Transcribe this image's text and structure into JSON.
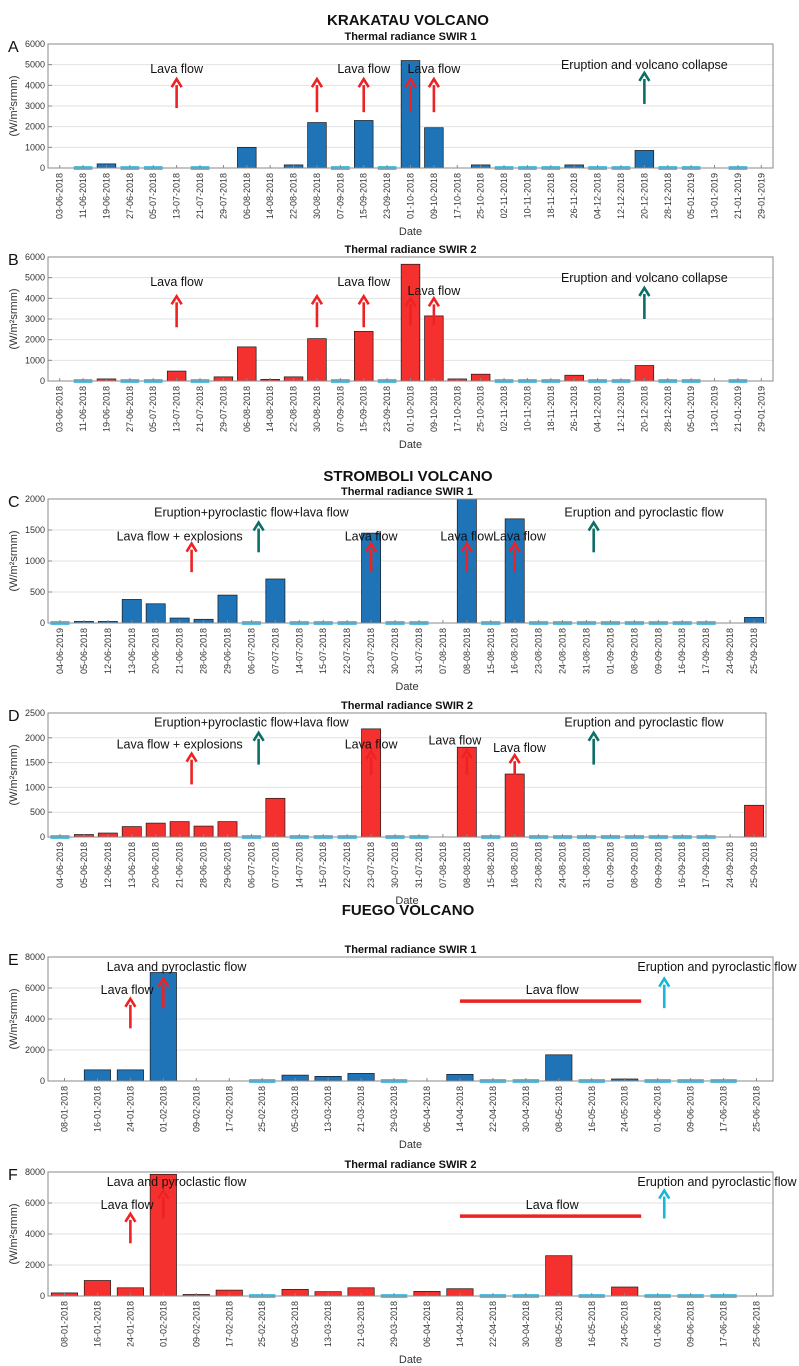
{
  "sections": [
    {
      "key": "krakatau",
      "title": "KRAKATAU VOLCANO"
    },
    {
      "key": "stromboli",
      "title": "STROMBOLI VOLCANO"
    },
    {
      "key": "fuego",
      "title": "FUEGO VOLCANO"
    }
  ],
  "colors": {
    "blue": "#1f74b8",
    "red": "#f5312f",
    "cyan": "#53c1e3",
    "arrow_red": "#ee2222",
    "arrow_teal": "#0b6e67",
    "arrow_cyan": "#1ab6d6",
    "grid": "#e2e2e2",
    "axis": "#888888"
  },
  "chart_data": [
    {
      "id": "A",
      "section": "krakatau",
      "type": "bar",
      "title": "Thermal radiance SWIR 1",
      "xlabel": "Date",
      "ylabel": "(W/m²srmm)",
      "ylim": [
        0,
        6000
      ],
      "yticks": [
        0,
        1000,
        2000,
        3000,
        4000,
        5000,
        6000
      ],
      "bar_color": "blue",
      "categories": [
        "03-06-2018",
        "11-06-2018",
        "19-06-2018",
        "27-06-2018",
        "05-07-2018",
        "13-07-2018",
        "21-07-2018",
        "29-07-2018",
        "06-08-2018",
        "14-08-2018",
        "22-08-2018",
        "30-08-2018",
        "07-09-2018",
        "15-09-2018",
        "23-09-2018",
        "01-10-2018",
        "09-10-2018",
        "17-10-2018",
        "25-10-2018",
        "02-11-2018",
        "10-11-2018",
        "18-11-2018",
        "26-11-2018",
        "04-12-2018",
        "12-12-2018",
        "20-12-2018",
        "28-12-2018",
        "05-01-2019",
        "13-01-2019",
        "21-01-2019",
        "29-01-2019"
      ],
      "values": [
        0,
        -1,
        200,
        -1,
        -1,
        0,
        -1,
        0,
        1000,
        0,
        150,
        2200,
        -1,
        2300,
        -1,
        5200,
        1950,
        0,
        150,
        -1,
        -1,
        -1,
        150,
        -1,
        -1,
        850,
        -1,
        -1,
        0,
        -1,
        0
      ],
      "annotations": [
        {
          "text": "Lava flow",
          "label_category": 5,
          "label_value": 4600
        },
        {
          "text": "Lava flow",
          "label_category": 13,
          "label_value": 4600
        },
        {
          "text": "Lava flow",
          "label_category": 16,
          "label_value": 4600
        },
        {
          "text": "Eruption and volcano collapse",
          "label_category": 25,
          "label_value": 4800
        }
      ],
      "arrows": [
        {
          "category": 5,
          "from": 2900,
          "to": 4300,
          "color": "arrow_red"
        },
        {
          "category": 11,
          "from": 2700,
          "to": 4300,
          "color": "arrow_red"
        },
        {
          "category": 13,
          "from": 2700,
          "to": 4300,
          "color": "arrow_red"
        },
        {
          "category": 15,
          "from": 2700,
          "to": 4300,
          "color": "arrow_red"
        },
        {
          "category": 16,
          "from": 2700,
          "to": 4300,
          "color": "arrow_red"
        },
        {
          "category": 25,
          "from": 3100,
          "to": 4600,
          "color": "arrow_teal"
        }
      ]
    },
    {
      "id": "B",
      "section": "krakatau",
      "type": "bar",
      "title": "Thermal radiance SWIR 2",
      "xlabel": "Date",
      "ylabel": "(W/m²srmm)",
      "ylim": [
        0,
        6000
      ],
      "yticks": [
        0,
        1000,
        2000,
        3000,
        4000,
        5000,
        6000
      ],
      "bar_color": "red",
      "categories": [
        "03-06-2018",
        "11-06-2018",
        "19-06-2018",
        "27-06-2018",
        "05-07-2018",
        "13-07-2018",
        "21-07-2018",
        "29-07-2018",
        "06-08-2018",
        "14-08-2018",
        "22-08-2018",
        "30-08-2018",
        "07-09-2018",
        "15-09-2018",
        "23-09-2018",
        "01-10-2018",
        "09-10-2018",
        "17-10-2018",
        "25-10-2018",
        "02-11-2018",
        "10-11-2018",
        "18-11-2018",
        "26-11-2018",
        "04-12-2018",
        "12-12-2018",
        "20-12-2018",
        "28-12-2018",
        "05-01-2019",
        "13-01-2019",
        "21-01-2019",
        "29-01-2019"
      ],
      "values": [
        0,
        -1,
        100,
        -1,
        -1,
        480,
        -1,
        200,
        1650,
        80,
        200,
        2050,
        -1,
        2400,
        -1,
        5650,
        3150,
        100,
        330,
        -1,
        -1,
        -1,
        280,
        -1,
        -1,
        750,
        -1,
        -1,
        0,
        -1,
        0
      ],
      "annotations": [
        {
          "text": "Lava flow",
          "label_category": 5,
          "label_value": 4600
        },
        {
          "text": "Lava flow",
          "label_category": 13,
          "label_value": 4600
        },
        {
          "text": "Lava flow",
          "label_category": 16,
          "label_value": 4150
        },
        {
          "text": "Eruption and volcano collapse",
          "label_category": 25,
          "label_value": 4800
        }
      ],
      "arrows": [
        {
          "category": 5,
          "from": 2600,
          "to": 4100,
          "color": "arrow_red"
        },
        {
          "category": 11,
          "from": 2600,
          "to": 4100,
          "color": "arrow_red"
        },
        {
          "category": 13,
          "from": 2600,
          "to": 4100,
          "color": "arrow_red"
        },
        {
          "category": 15,
          "from": 2700,
          "to": 4000,
          "color": "arrow_red"
        },
        {
          "category": 16,
          "from": 2700,
          "to": 4000,
          "color": "arrow_red"
        },
        {
          "category": 25,
          "from": 3000,
          "to": 4500,
          "color": "arrow_teal"
        }
      ]
    },
    {
      "id": "C",
      "section": "stromboli",
      "type": "bar",
      "title": "Thermal radiance SWIR 1",
      "xlabel": "Date",
      "ylabel": "(W/m²srmm)",
      "ylim": [
        0,
        2000
      ],
      "yticks": [
        0,
        500,
        1000,
        1500,
        2000
      ],
      "bar_color": "blue",
      "categories": [
        "04-06-2019",
        "05-06-2018",
        "12-06-2018",
        "13-06-2018",
        "20-06-2018",
        "21-06-2018",
        "28-06-2018",
        "29-06-2018",
        "06-07-2018",
        "07-07-2018",
        "14-07-2018",
        "15-07-2018",
        "22-07-2018",
        "23-07-2018",
        "30-07-2018",
        "31-07-2018",
        "07-08-2018",
        "08-08-2018",
        "15-08-2018",
        "16-08-2018",
        "23-08-2018",
        "24-08-2018",
        "31-08-2018",
        "01-09-2018",
        "08-09-2018",
        "09-09-2018",
        "16-09-2018",
        "17-09-2018",
        "24-09-2018",
        "25-09-2018"
      ],
      "values": [
        -1,
        25,
        25,
        380,
        310,
        80,
        60,
        450,
        -1,
        710,
        -1,
        -1,
        -1,
        1450,
        -1,
        -1,
        0,
        2000,
        -1,
        1680,
        -1,
        -1,
        -1,
        -1,
        -1,
        -1,
        -1,
        -1,
        0,
        90
      ],
      "annotations": [
        {
          "text": "Eruption+pyroclastic flow+lava flow",
          "label_category": 8,
          "label_value": 1720
        },
        {
          "text": "Lava flow + explosions",
          "label_category": 5,
          "label_value": 1330
        },
        {
          "text": "Lava flow",
          "label_category": 13,
          "label_value": 1330
        },
        {
          "text": "Lava flow",
          "label_category": 17,
          "label_value": 1330
        },
        {
          "text": "Lava flow",
          "label_category": 19.2,
          "label_value": 1330
        },
        {
          "text": "Eruption and pyroclastic flow",
          "label_category": 24.4,
          "label_value": 1720
        }
      ],
      "arrows": [
        {
          "category": 5.5,
          "from": 820,
          "to": 1280,
          "color": "arrow_red"
        },
        {
          "category": 13,
          "from": 820,
          "to": 1280,
          "color": "arrow_red"
        },
        {
          "category": 17,
          "from": 820,
          "to": 1280,
          "color": "arrow_red"
        },
        {
          "category": 19,
          "from": 820,
          "to": 1280,
          "color": "arrow_red"
        },
        {
          "category": 8.3,
          "from": 1140,
          "to": 1620,
          "color": "arrow_teal"
        },
        {
          "category": 22.3,
          "from": 1140,
          "to": 1620,
          "color": "arrow_teal"
        }
      ]
    },
    {
      "id": "D",
      "section": "stromboli",
      "type": "bar",
      "title": "Thermal radiance SWIR 2",
      "xlabel": "Date",
      "ylabel": "(W/m²srmm)",
      "ylim": [
        0,
        2500
      ],
      "yticks": [
        0,
        500,
        1000,
        1500,
        2000,
        2500
      ],
      "bar_color": "red",
      "categories": [
        "04-06-2019",
        "05-06-2018",
        "12-06-2018",
        "13-06-2018",
        "20-06-2018",
        "21-06-2018",
        "28-06-2018",
        "29-06-2018",
        "06-07-2018",
        "07-07-2018",
        "14-07-2018",
        "15-07-2018",
        "22-07-2018",
        "23-07-2018",
        "30-07-2018",
        "31-07-2018",
        "07-08-2018",
        "08-08-2018",
        "15-08-2018",
        "16-08-2018",
        "23-08-2018",
        "24-08-2018",
        "31-08-2018",
        "01-09-2018",
        "08-09-2018",
        "09-09-2018",
        "16-09-2018",
        "17-09-2018",
        "24-09-2018",
        "25-09-2018"
      ],
      "values": [
        -1,
        50,
        80,
        210,
        280,
        310,
        220,
        310,
        -1,
        780,
        -1,
        -1,
        -1,
        2180,
        -1,
        -1,
        0,
        1810,
        -1,
        1270,
        -1,
        -1,
        -1,
        -1,
        -1,
        -1,
        -1,
        -1,
        0,
        640
      ],
      "annotations": [
        {
          "text": "Eruption+pyroclastic flow+lava flow",
          "label_category": 8,
          "label_value": 2230
        },
        {
          "text": "Lava flow + explosions",
          "label_category": 5,
          "label_value": 1780
        },
        {
          "text": "Lava flow",
          "label_category": 13,
          "label_value": 1780
        },
        {
          "text": "Lava flow",
          "label_category": 16.5,
          "label_value": 1860
        },
        {
          "text": "Lava flow",
          "label_category": 19.2,
          "label_value": 1710
        },
        {
          "text": "Eruption and pyroclastic flow",
          "label_category": 24.4,
          "label_value": 2230
        }
      ],
      "arrows": [
        {
          "category": 5.5,
          "from": 1060,
          "to": 1680,
          "color": "arrow_red"
        },
        {
          "category": 13,
          "from": 1250,
          "to": 1730,
          "color": "arrow_red"
        },
        {
          "category": 17,
          "from": 1250,
          "to": 1750,
          "color": "arrow_red"
        },
        {
          "category": 19,
          "from": 1250,
          "to": 1650,
          "color": "arrow_red"
        },
        {
          "category": 8.3,
          "from": 1460,
          "to": 2100,
          "color": "arrow_teal"
        },
        {
          "category": 22.3,
          "from": 1460,
          "to": 2100,
          "color": "arrow_teal"
        }
      ]
    },
    {
      "id": "E",
      "section": "fuego",
      "type": "bar",
      "title": "Thermal radiance SWIR 1",
      "xlabel": "Date",
      "ylabel": "(W/m²srmm)",
      "ylim": [
        0,
        8000
      ],
      "yticks": [
        0,
        2000,
        4000,
        6000,
        8000
      ],
      "bar_color": "blue",
      "categories": [
        "08-01-2018",
        "16-01-2018",
        "24-01-2018",
        "01-02-2018",
        "09-02-2018",
        "17-02-2018",
        "25-02-2018",
        "05-03-2018",
        "13-03-2018",
        "21-03-2018",
        "29-03-2018",
        "06-04-2018",
        "14-04-2018",
        "22-04-2018",
        "30-04-2018",
        "08-05-2018",
        "16-05-2018",
        "24-05-2018",
        "01-06-2018",
        "09-06-2018",
        "17-06-2018",
        "25-06-2018"
      ],
      "values": [
        0,
        720,
        720,
        7000,
        0,
        0,
        -1,
        380,
        300,
        490,
        -1,
        0,
        430,
        -1,
        -1,
        1690,
        -1,
        130,
        -1,
        -1,
        -1,
        0
      ],
      "annotations": [
        {
          "text": "Lava and pyroclastic flow",
          "label_category": 3.4,
          "label_value": 7100
        },
        {
          "text": "Lava flow",
          "label_category": 1.9,
          "label_value": 5600
        },
        {
          "text": "Lava flow",
          "label_category": 14.8,
          "label_value": 5600
        },
        {
          "text": "Eruption and pyroclastic flow",
          "label_category": 19.8,
          "label_value": 7100
        }
      ],
      "arrows": [
        {
          "category": 2,
          "from": 3400,
          "to": 5300,
          "color": "arrow_red"
        },
        {
          "category": 3,
          "from": 4700,
          "to": 6600,
          "color": "arrow_red"
        },
        {
          "category": 18.2,
          "from": 4700,
          "to": 6600,
          "color": "arrow_cyan"
        }
      ],
      "ranges": [
        {
          "from_category": 12,
          "to_category": 17.5,
          "value": 5150,
          "color": "arrow_red"
        }
      ]
    },
    {
      "id": "F",
      "section": "fuego",
      "type": "bar",
      "title": "Thermal radiance SWIR 2",
      "xlabel": "Date",
      "ylabel": "(W/m²srmm)",
      "ylim": [
        0,
        8000
      ],
      "yticks": [
        0,
        2000,
        4000,
        6000,
        8000
      ],
      "bar_color": "red",
      "categories": [
        "08-01-2018",
        "16-01-2018",
        "24-01-2018",
        "01-02-2018",
        "09-02-2018",
        "17-02-2018",
        "25-02-2018",
        "05-03-2018",
        "13-03-2018",
        "21-03-2018",
        "29-03-2018",
        "06-04-2018",
        "14-04-2018",
        "22-04-2018",
        "30-04-2018",
        "08-05-2018",
        "16-05-2018",
        "24-05-2018",
        "01-06-2018",
        "09-06-2018",
        "17-06-2018",
        "25-06-2018"
      ],
      "values": [
        200,
        1000,
        530,
        7850,
        100,
        380,
        -1,
        430,
        280,
        530,
        -1,
        300,
        470,
        -1,
        -1,
        2600,
        -1,
        580,
        -1,
        -1,
        -1,
        0
      ],
      "annotations": [
        {
          "text": "Lava and pyroclastic flow",
          "label_category": 3.4,
          "label_value": 7100
        },
        {
          "text": "Lava flow",
          "label_category": 1.9,
          "label_value": 5600
        },
        {
          "text": "Lava flow",
          "label_category": 14.8,
          "label_value": 5600
        },
        {
          "text": "Eruption and pyroclastic flow",
          "label_category": 19.8,
          "label_value": 7100
        }
      ],
      "arrows": [
        {
          "category": 2,
          "from": 3400,
          "to": 5300,
          "color": "arrow_red"
        },
        {
          "category": 3,
          "from": 5000,
          "to": 6800,
          "color": "arrow_red"
        },
        {
          "category": 18.2,
          "from": 5000,
          "to": 6800,
          "color": "arrow_cyan"
        }
      ],
      "ranges": [
        {
          "from_category": 12,
          "to_category": 17.5,
          "value": 5150,
          "color": "arrow_red"
        }
      ]
    }
  ]
}
